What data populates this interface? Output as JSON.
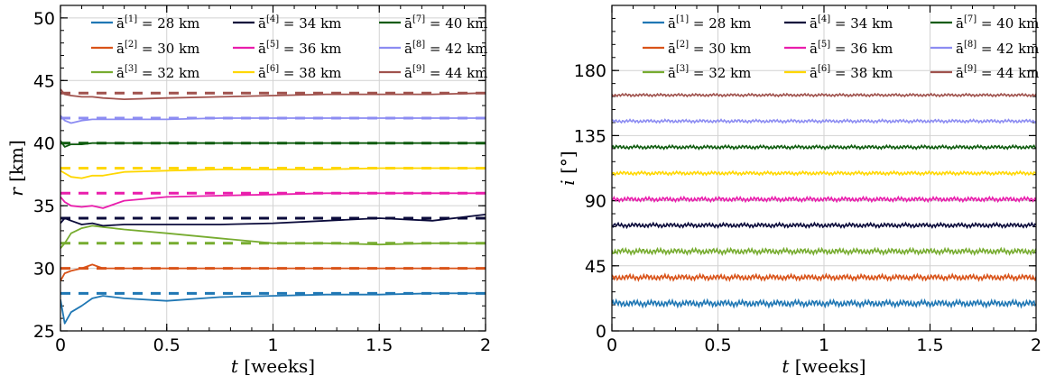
{
  "chart_data": [
    {
      "type": "line",
      "xlabel_var": "t",
      "xlabel_unit": "[weeks]",
      "ylabel_var": "r",
      "ylabel_unit": "[km]",
      "xlim": [
        0,
        2
      ],
      "ylim": [
        25,
        51
      ],
      "xticks": [
        0,
        0.5,
        1,
        1.5,
        2
      ],
      "xtick_labels": [
        "0",
        "0.5",
        "1",
        "1.5",
        "2"
      ],
      "yticks": [
        25,
        30,
        35,
        40,
        45,
        50
      ],
      "ytick_labels": [
        "25",
        "30",
        "35",
        "40",
        "45",
        "50"
      ],
      "grid": true,
      "legend_placement": "top",
      "legend_ncol": 3,
      "t": [
        0,
        0.02,
        0.05,
        0.1,
        0.15,
        0.2,
        0.3,
        0.5,
        0.75,
        1.0,
        1.25,
        1.5,
        1.75,
        2.0
      ],
      "series": [
        {
          "name": "ā[1] = 28 km",
          "legend_base": "ā",
          "legend_sup": "[1]",
          "legend_rest": " = 28 km",
          "color": "#1f77b4",
          "reference": 28,
          "values": [
            27.5,
            25.6,
            26.5,
            27.0,
            27.6,
            27.8,
            27.6,
            27.4,
            27.7,
            27.8,
            27.9,
            27.9,
            28.0,
            28.0
          ]
        },
        {
          "name": "ā[2] = 30 km",
          "legend_base": "ā",
          "legend_sup": "[2]",
          "legend_rest": " = 30 km",
          "color": "#d95319",
          "reference": 30,
          "values": [
            29.0,
            29.6,
            29.8,
            30.0,
            30.3,
            30.0,
            30.0,
            30.0,
            30.0,
            30.0,
            30.0,
            30.0,
            30.0,
            30.0
          ]
        },
        {
          "name": "ā[3] = 32 km",
          "legend_base": "ā",
          "legend_sup": "[3]",
          "legend_rest": " = 32 km",
          "color": "#77ac30",
          "reference": 32,
          "values": [
            31.6,
            32.0,
            32.8,
            33.2,
            33.4,
            33.3,
            33.1,
            32.8,
            32.4,
            32.0,
            32.0,
            31.9,
            32.0,
            32.0
          ]
        },
        {
          "name": "ā[4] = 34 km",
          "legend_base": "ā",
          "legend_sup": "[4]",
          "legend_rest": " = 34 km",
          "color": "#0b0b3b",
          "reference": 34,
          "values": [
            33.6,
            34.0,
            33.8,
            33.5,
            33.6,
            33.4,
            33.5,
            33.5,
            33.5,
            33.6,
            33.8,
            34.0,
            33.8,
            34.3
          ]
        },
        {
          "name": "ā[5] = 36 km",
          "legend_base": "ā",
          "legend_sup": "[5]",
          "legend_rest": " = 36 km",
          "color": "#e91eac",
          "reference": 36,
          "values": [
            35.7,
            35.3,
            35.0,
            34.9,
            35.0,
            34.8,
            35.4,
            35.7,
            35.8,
            35.9,
            36.0,
            36.0,
            36.0,
            36.0
          ]
        },
        {
          "name": "ā[6] = 38 km",
          "legend_base": "ā",
          "legend_sup": "[6]",
          "legend_rest": " = 38 km",
          "color": "#ffd700",
          "reference": 38,
          "values": [
            37.8,
            37.6,
            37.3,
            37.2,
            37.4,
            37.4,
            37.7,
            37.8,
            37.9,
            37.9,
            37.9,
            38.0,
            38.0,
            38.0
          ]
        },
        {
          "name": "ā[7] = 40 km",
          "legend_base": "ā",
          "legend_sup": "[7]",
          "legend_rest": " = 40 km",
          "color": "#0f5c0f",
          "reference": 40,
          "values": [
            40.2,
            39.7,
            39.9,
            39.9,
            40.0,
            40.0,
            40.0,
            40.0,
            40.0,
            40.0,
            40.0,
            40.0,
            40.0,
            40.0
          ]
        },
        {
          "name": "ā[8] = 42 km",
          "legend_base": "ā",
          "legend_sup": "[8]",
          "legend_rest": " = 42 km",
          "color": "#8c8cf2",
          "reference": 42,
          "values": [
            42.2,
            41.8,
            41.6,
            41.8,
            41.9,
            41.9,
            41.9,
            41.9,
            42.0,
            42.0,
            42.0,
            42.0,
            42.0,
            42.0
          ]
        },
        {
          "name": "ā[9] = 44 km",
          "legend_base": "ā",
          "legend_sup": "[9]",
          "legend_rest": " = 44 km",
          "color": "#a0524d",
          "reference": 44,
          "values": [
            44.3,
            43.9,
            43.8,
            43.7,
            43.7,
            43.6,
            43.5,
            43.6,
            43.7,
            43.8,
            43.9,
            43.9,
            43.9,
            44.0
          ]
        }
      ]
    },
    {
      "type": "line",
      "xlabel_var": "t",
      "xlabel_unit": "[weeks]",
      "ylabel_var": "i",
      "ylabel_unit": "[°]",
      "xlim": [
        0,
        2
      ],
      "ylim": [
        0,
        225
      ],
      "xticks": [
        0,
        0.5,
        1,
        1.5,
        2
      ],
      "xtick_labels": [
        "0",
        "0.5",
        "1",
        "1.5",
        "2"
      ],
      "yticks": [
        0,
        45,
        90,
        135,
        180
      ],
      "ytick_labels": [
        "0",
        "45",
        "90",
        "135",
        "180"
      ],
      "grid": true,
      "legend_placement": "top",
      "legend_ncol": 3,
      "series": [
        {
          "name": "ā[1] = 28 km",
          "legend_base": "ā",
          "legend_sup": "[1]",
          "legend_rest": " = 28 km",
          "color": "#1f77b4",
          "mean": 19,
          "ripple": 1.6
        },
        {
          "name": "ā[2] = 30 km",
          "legend_base": "ā",
          "legend_sup": "[2]",
          "legend_rest": " = 30 km",
          "color": "#d95319",
          "mean": 37,
          "ripple": 1.4
        },
        {
          "name": "ā[3] = 32 km",
          "legend_base": "ā",
          "legend_sup": "[3]",
          "legend_rest": " = 32 km",
          "color": "#77ac30",
          "mean": 55,
          "ripple": 1.4
        },
        {
          "name": "ā[4] = 34 km",
          "legend_base": "ā",
          "legend_sup": "[4]",
          "legend_rest": " = 34 km",
          "color": "#0b0b3b",
          "mean": 73,
          "ripple": 1.1
        },
        {
          "name": "ā[5] = 36 km",
          "legend_base": "ā",
          "legend_sup": "[5]",
          "legend_rest": " = 36 km",
          "color": "#e91eac",
          "mean": 91,
          "ripple": 1.1
        },
        {
          "name": "ā[6] = 38 km",
          "legend_base": "ā",
          "legend_sup": "[6]",
          "legend_rest": " = 38 km",
          "color": "#ffd700",
          "mean": 109,
          "ripple": 0.9
        },
        {
          "name": "ā[7] = 40 km",
          "legend_base": "ā",
          "legend_sup": "[7]",
          "legend_rest": " = 40 km",
          "color": "#0f5c0f",
          "mean": 127,
          "ripple": 0.9
        },
        {
          "name": "ā[8] = 42 km",
          "legend_base": "ā",
          "legend_sup": "[8]",
          "legend_rest": " = 42 km",
          "color": "#8c8cf2",
          "mean": 145,
          "ripple": 0.8
        },
        {
          "name": "ā[9] = 44 km",
          "legend_base": "ā",
          "legend_sup": "[9]",
          "legend_rest": " = 44 km",
          "color": "#a0524d",
          "mean": 163,
          "ripple": 0.7
        }
      ]
    }
  ]
}
